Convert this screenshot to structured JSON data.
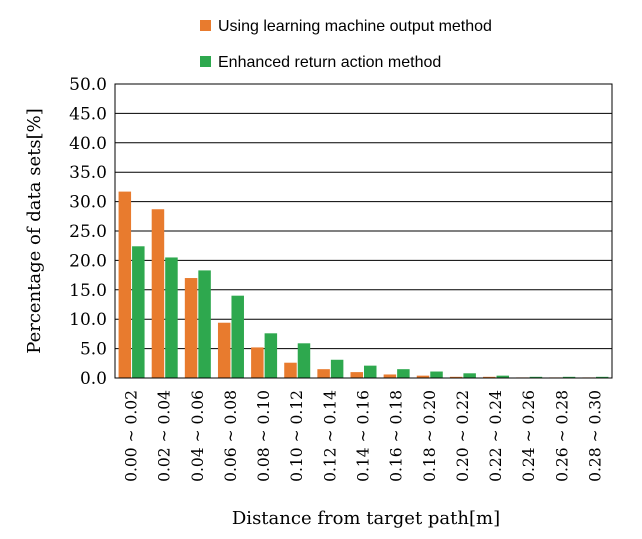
{
  "chart_data": {
    "type": "bar",
    "xlabel": "Distance from target path[m]",
    "ylabel": "Percentage of data sets[%]",
    "ylim": [
      0,
      50
    ],
    "yticks": [
      "0.0",
      "5.0",
      "10.0",
      "15.0",
      "20.0",
      "25.0",
      "30.0",
      "35.0",
      "40.0",
      "45.0",
      "50.0"
    ],
    "grid": true,
    "legend_position": "top",
    "categories": [
      "0.00 ~ 0.02",
      "0.02 ~ 0.04",
      "0.04 ~ 0.06",
      "0.06 ~ 0.08",
      "0.08 ~ 0.10",
      "0.10 ~ 0.12",
      "0.12 ~ 0.14",
      "0.14 ~ 0.16",
      "0.16 ~ 0.18",
      "0.18 ~ 0.20",
      "0.20 ~ 0.22",
      "0.22 ~ 0.24",
      "0.24 ~ 0.26",
      "0.26 ~ 0.28",
      "0.28 ~ 0.30"
    ],
    "series": [
      {
        "name": "Using learning machine output method",
        "color": "#E87B2E",
        "values": [
          31.7,
          28.7,
          17.0,
          9.4,
          5.2,
          2.6,
          1.5,
          1.0,
          0.6,
          0.4,
          0.2,
          0.2,
          0.1,
          0.1,
          0.1
        ]
      },
      {
        "name": "Enhanced return action method",
        "color": "#2EA84E",
        "values": [
          22.4,
          20.5,
          18.3,
          14.0,
          7.6,
          5.9,
          3.1,
          2.1,
          1.5,
          1.1,
          0.8,
          0.4,
          0.2,
          0.2,
          0.2
        ]
      }
    ]
  }
}
